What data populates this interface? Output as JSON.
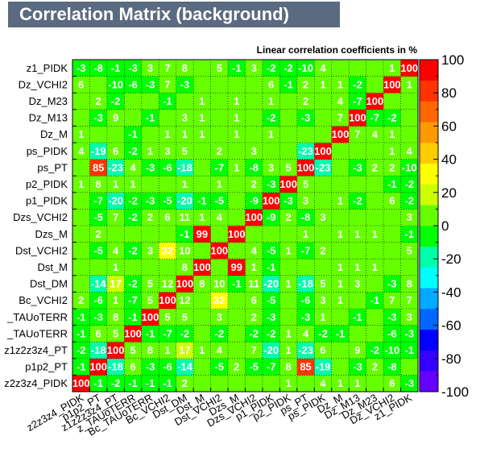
{
  "title": "Correlation Matrix (background)",
  "subtitle": "Linear correlation coefficients in %",
  "chart_data": {
    "type": "heatmap",
    "title": "Correlation Matrix (background)",
    "subtitle": "Linear correlation coefficients in %",
    "variables": [
      "z2z3z4_PIDK",
      "p1p2_PT",
      "z1z2z3z4_PT",
      "z_TAUoTERR",
      "Bc_TAUoTERR",
      "Bc_VCHI2",
      "Dst_DM",
      "Dst_M",
      "Dst_VCHI2",
      "Dzs_M",
      "Dzs_VCHI2",
      "p1_PIDK",
      "p2_PIDK",
      "ps_PT",
      "ps_PIDK",
      "Dz_M",
      "Dz_M13",
      "Dz_M23",
      "Dz_VCHI2",
      "z1_PIDK"
    ],
    "y_tick_labels": [
      "z2z3z4_PIDK",
      "p1p2_PT",
      "z1z2z3z4_PT",
      "_TAUoTERR",
      "_TAUoTERR",
      "Bc_VCHI2",
      "Dst_DM",
      "Dst_M",
      "Dst_VCHI2",
      "Dzs_M",
      "Dzs_VCHI2",
      "p1_PIDK",
      "p2_PIDK",
      "ps_PT",
      "ps_PIDK",
      "Dz_M",
      "Dz_M13",
      "Dz_M23",
      "Dz_VCHI2",
      "z1_PIDK"
    ],
    "x_tick_labels": [
      "z2z3z4_PIDK",
      "p1p2_PT",
      "z1z2z3z4_PT",
      "z_TAUoTERR",
      "Bc_TAUoTERR",
      "Bc_VCHI2",
      "Dst_DM",
      "Dst_M",
      "Dst_VCHI2",
      "Dzs_M",
      "Dzs_VCHI2",
      "p1_PIDK",
      "p2_PIDK",
      "ps_PT",
      "ps_PIDK",
      "Dz_M",
      "Dz_M13",
      "Dz_M23",
      "Dz_VCHI2",
      "z1_PIDK"
    ],
    "matrix": [
      [
        100,
        -1,
        -2,
        -1,
        -1,
        -1,
        2,
        0,
        0,
        0,
        0,
        0,
        1,
        0,
        4,
        1,
        1,
        0,
        6,
        -3
      ],
      [
        -1,
        100,
        -18,
        6,
        -3,
        -6,
        -14,
        0,
        -5,
        2,
        -5,
        -7,
        8,
        85,
        -19,
        0,
        -3,
        2,
        -8,
        0
      ],
      [
        -2,
        -18,
        100,
        5,
        8,
        1,
        17,
        1,
        4,
        0,
        7,
        -20,
        1,
        -23,
        6,
        0,
        9,
        -2,
        -10,
        -1
      ],
      [
        -1,
        6,
        5,
        100,
        -1,
        -7,
        -2,
        0,
        -2,
        0,
        -2,
        -2,
        1,
        4,
        -2,
        -1,
        0,
        0,
        -6,
        -3
      ],
      [
        -1,
        -3,
        8,
        -1,
        100,
        5,
        5,
        0,
        3,
        0,
        2,
        -3,
        0,
        -3,
        1,
        0,
        -1,
        0,
        -3,
        3
      ],
      [
        2,
        -6,
        1,
        -7,
        5,
        100,
        12,
        0,
        32,
        0,
        6,
        -5,
        0,
        -6,
        3,
        1,
        0,
        -1,
        7,
        7
      ],
      [
        0,
        -14,
        17,
        -2,
        5,
        12,
        100,
        8,
        10,
        -1,
        11,
        -20,
        1,
        -18,
        5,
        1,
        3,
        0,
        -3,
        8
      ],
      [
        0,
        0,
        1,
        0,
        0,
        0,
        8,
        100,
        0,
        99,
        1,
        -1,
        0,
        0,
        0,
        1,
        1,
        1,
        0,
        0
      ],
      [
        0,
        -5,
        4,
        -2,
        3,
        32,
        10,
        0,
        100,
        0,
        4,
        -5,
        1,
        -7,
        2,
        0,
        0,
        0,
        0,
        5
      ],
      [
        0,
        2,
        0,
        0,
        0,
        0,
        -1,
        99,
        0,
        100,
        0,
        0,
        0,
        1,
        0,
        1,
        1,
        1,
        0,
        -1
      ],
      [
        0,
        -5,
        7,
        -2,
        2,
        6,
        11,
        1,
        4,
        0,
        100,
        -9,
        2,
        -8,
        3,
        0,
        0,
        0,
        0,
        3
      ],
      [
        0,
        -7,
        -20,
        -2,
        -3,
        -5,
        -20,
        -1,
        -5,
        0,
        -9,
        100,
        -3,
        3,
        0,
        1,
        -2,
        0,
        6,
        -2
      ],
      [
        1,
        8,
        1,
        1,
        0,
        0,
        1,
        0,
        1,
        0,
        2,
        -3,
        100,
        5,
        0,
        0,
        0,
        0,
        -1,
        -2
      ],
      [
        0,
        85,
        -23,
        4,
        -3,
        -6,
        -18,
        0,
        -7,
        1,
        -8,
        3,
        5,
        100,
        -23,
        0,
        -3,
        2,
        2,
        -10
      ],
      [
        4,
        -19,
        6,
        -2,
        1,
        3,
        5,
        0,
        2,
        0,
        3,
        0,
        0,
        -23,
        100,
        0,
        0,
        0,
        1,
        4
      ],
      [
        1,
        0,
        0,
        -1,
        0,
        1,
        1,
        1,
        0,
        1,
        0,
        1,
        0,
        0,
        0,
        100,
        7,
        4,
        1,
        0
      ],
      [
        0,
        -3,
        9,
        0,
        -1,
        0,
        3,
        1,
        0,
        1,
        0,
        -2,
        0,
        -3,
        0,
        7,
        100,
        -7,
        -2,
        0
      ],
      [
        0,
        2,
        -2,
        0,
        0,
        -1,
        0,
        1,
        0,
        1,
        0,
        1,
        0,
        2,
        0,
        4,
        -7,
        100,
        0,
        0
      ],
      [
        6,
        0,
        -10,
        -6,
        -3,
        7,
        -3,
        0,
        0,
        0,
        0,
        6,
        -1,
        2,
        1,
        1,
        -2,
        0,
        100,
        1
      ],
      [
        -3,
        -8,
        -1,
        -3,
        3,
        7,
        8,
        0,
        5,
        -1,
        3,
        -2,
        -2,
        -10,
        4,
        0,
        0,
        0,
        1,
        100
      ]
    ],
    "color_scale": {
      "min": -100,
      "max": 100,
      "ticks": [
        -100,
        -80,
        -60,
        -40,
        -20,
        0,
        20,
        40,
        60,
        80,
        100
      ],
      "colors": [
        "#6600ff",
        "#3300ff",
        "#0000ff",
        "#0066ff",
        "#00aaff",
        "#00ffff",
        "#00ffaa",
        "#00ff00",
        "#66ff00",
        "#ccff00",
        "#ffff00",
        "#ffcc00",
        "#ff9900",
        "#ff6600",
        "#ff3300",
        "#ff0000"
      ]
    },
    "grid": true
  }
}
